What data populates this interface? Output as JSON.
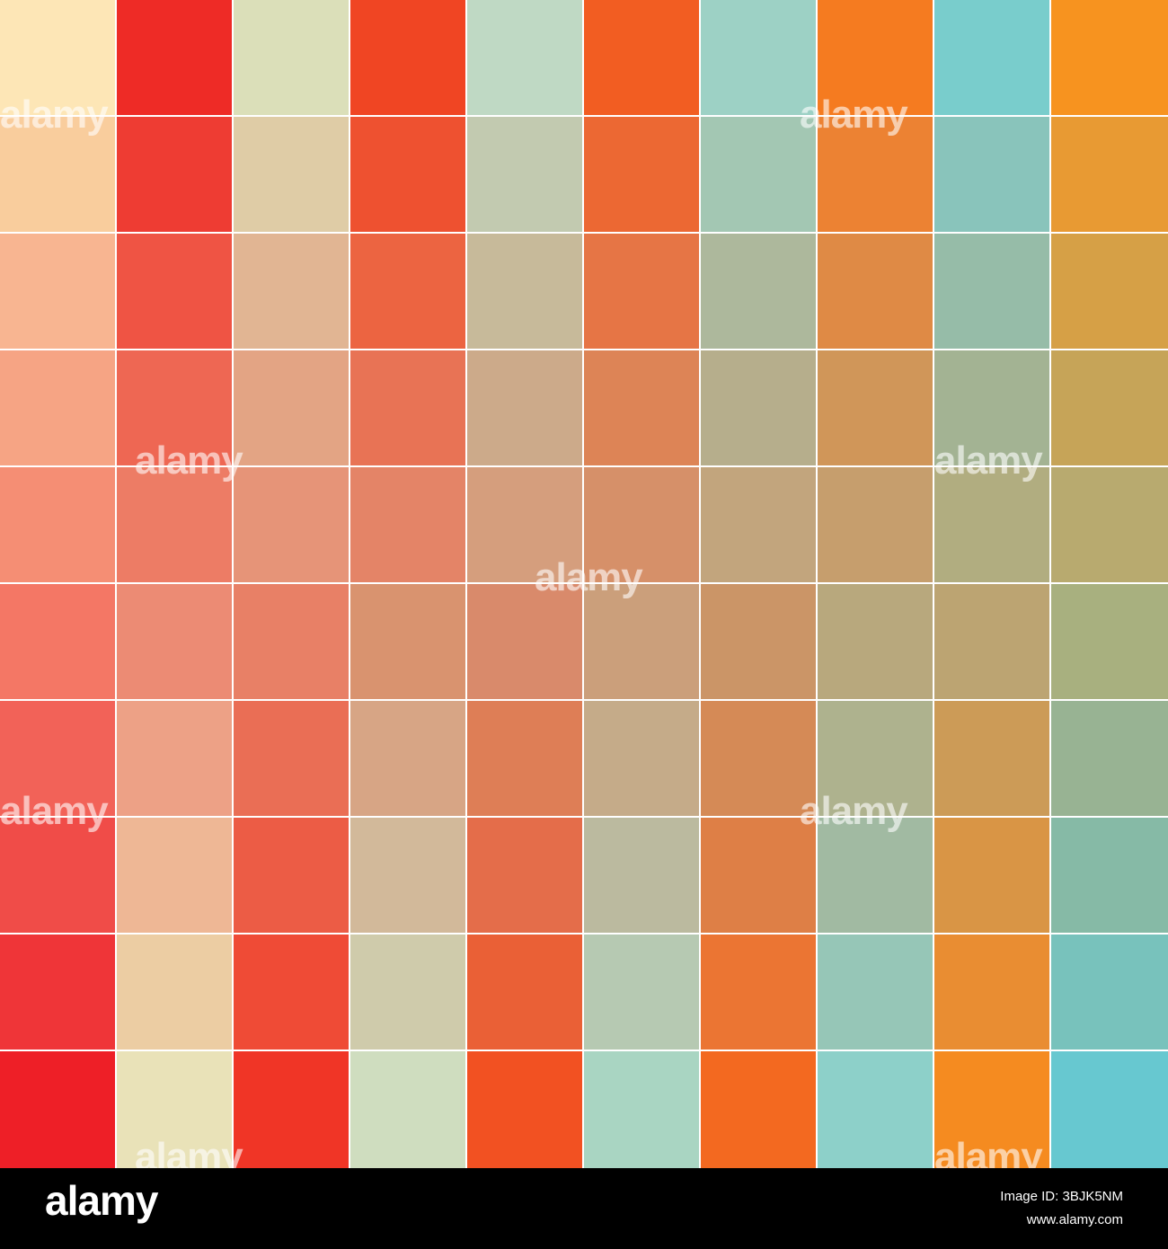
{
  "tiles": [
    [
      "#fde6b6",
      "#ee2b26",
      "#dbdfb9",
      "#f04523",
      "#bfd9c4",
      "#f25d22",
      "#9dd1c5",
      "#f57b20",
      "#79cdcc",
      "#f7931f"
    ],
    [
      "#f9cd9d",
      "#ee3c33",
      "#dfcca6",
      "#ee5130",
      "#c2cab0",
      "#ec6833",
      "#a3c7b3",
      "#ec8233",
      "#89c4bb",
      "#e89a33"
    ],
    [
      "#f8b591",
      "#ef5444",
      "#e1b593",
      "#ec6441",
      "#c7ba9a",
      "#e67545",
      "#adb89c",
      "#df8a45",
      "#96bca8",
      "#d6a046"
    ],
    [
      "#f6a484",
      "#ee6753",
      "#e3a484",
      "#e87355",
      "#ccaa8a",
      "#dd8456",
      "#b6ae8c",
      "#d09659",
      "#a3b393",
      "#c6a458"
    ],
    [
      "#f58e74",
      "#ed7c65",
      "#e69478",
      "#e48467",
      "#d59e7d",
      "#d69069",
      "#c2a57d",
      "#c69e6d",
      "#b1ad80",
      "#b8aa6f"
    ],
    [
      "#f47765",
      "#ec8b74",
      "#e88066",
      "#d9936f",
      "#d98a6b",
      "#cb9f7b",
      "#cb9567",
      "#b8a87d",
      "#bca472",
      "#a8b07f"
    ],
    [
      "#f26258",
      "#eda186",
      "#ea6e55",
      "#d7a585",
      "#de7e56",
      "#c5ab89",
      "#d58a56",
      "#aeb28e",
      "#cc9b57",
      "#98b393"
    ],
    [
      "#f04c48",
      "#eeb795",
      "#ec5c45",
      "#d2b99a",
      "#e46d4a",
      "#bbba9f",
      "#de7f46",
      "#a1baa2",
      "#d99545",
      "#86baa6"
    ],
    [
      "#ef3538",
      "#eccda3",
      "#ef4b36",
      "#cfcbab",
      "#ea6036",
      "#b6c9b2",
      "#eb7533",
      "#96c6b7",
      "#e98d32",
      "#78c2bc"
    ],
    [
      "#ee1f27",
      "#e9e2b8",
      "#f03526",
      "#cfddbf",
      "#f25122",
      "#a9d5c2",
      "#f36920",
      "#8dd0c9",
      "#f58b20",
      "#67c8d0"
    ]
  ],
  "watermark": "alamy",
  "footer": {
    "logo": "alamy",
    "image_id": "Image ID: 3BJK5NM",
    "url": "www.alamy.com"
  }
}
